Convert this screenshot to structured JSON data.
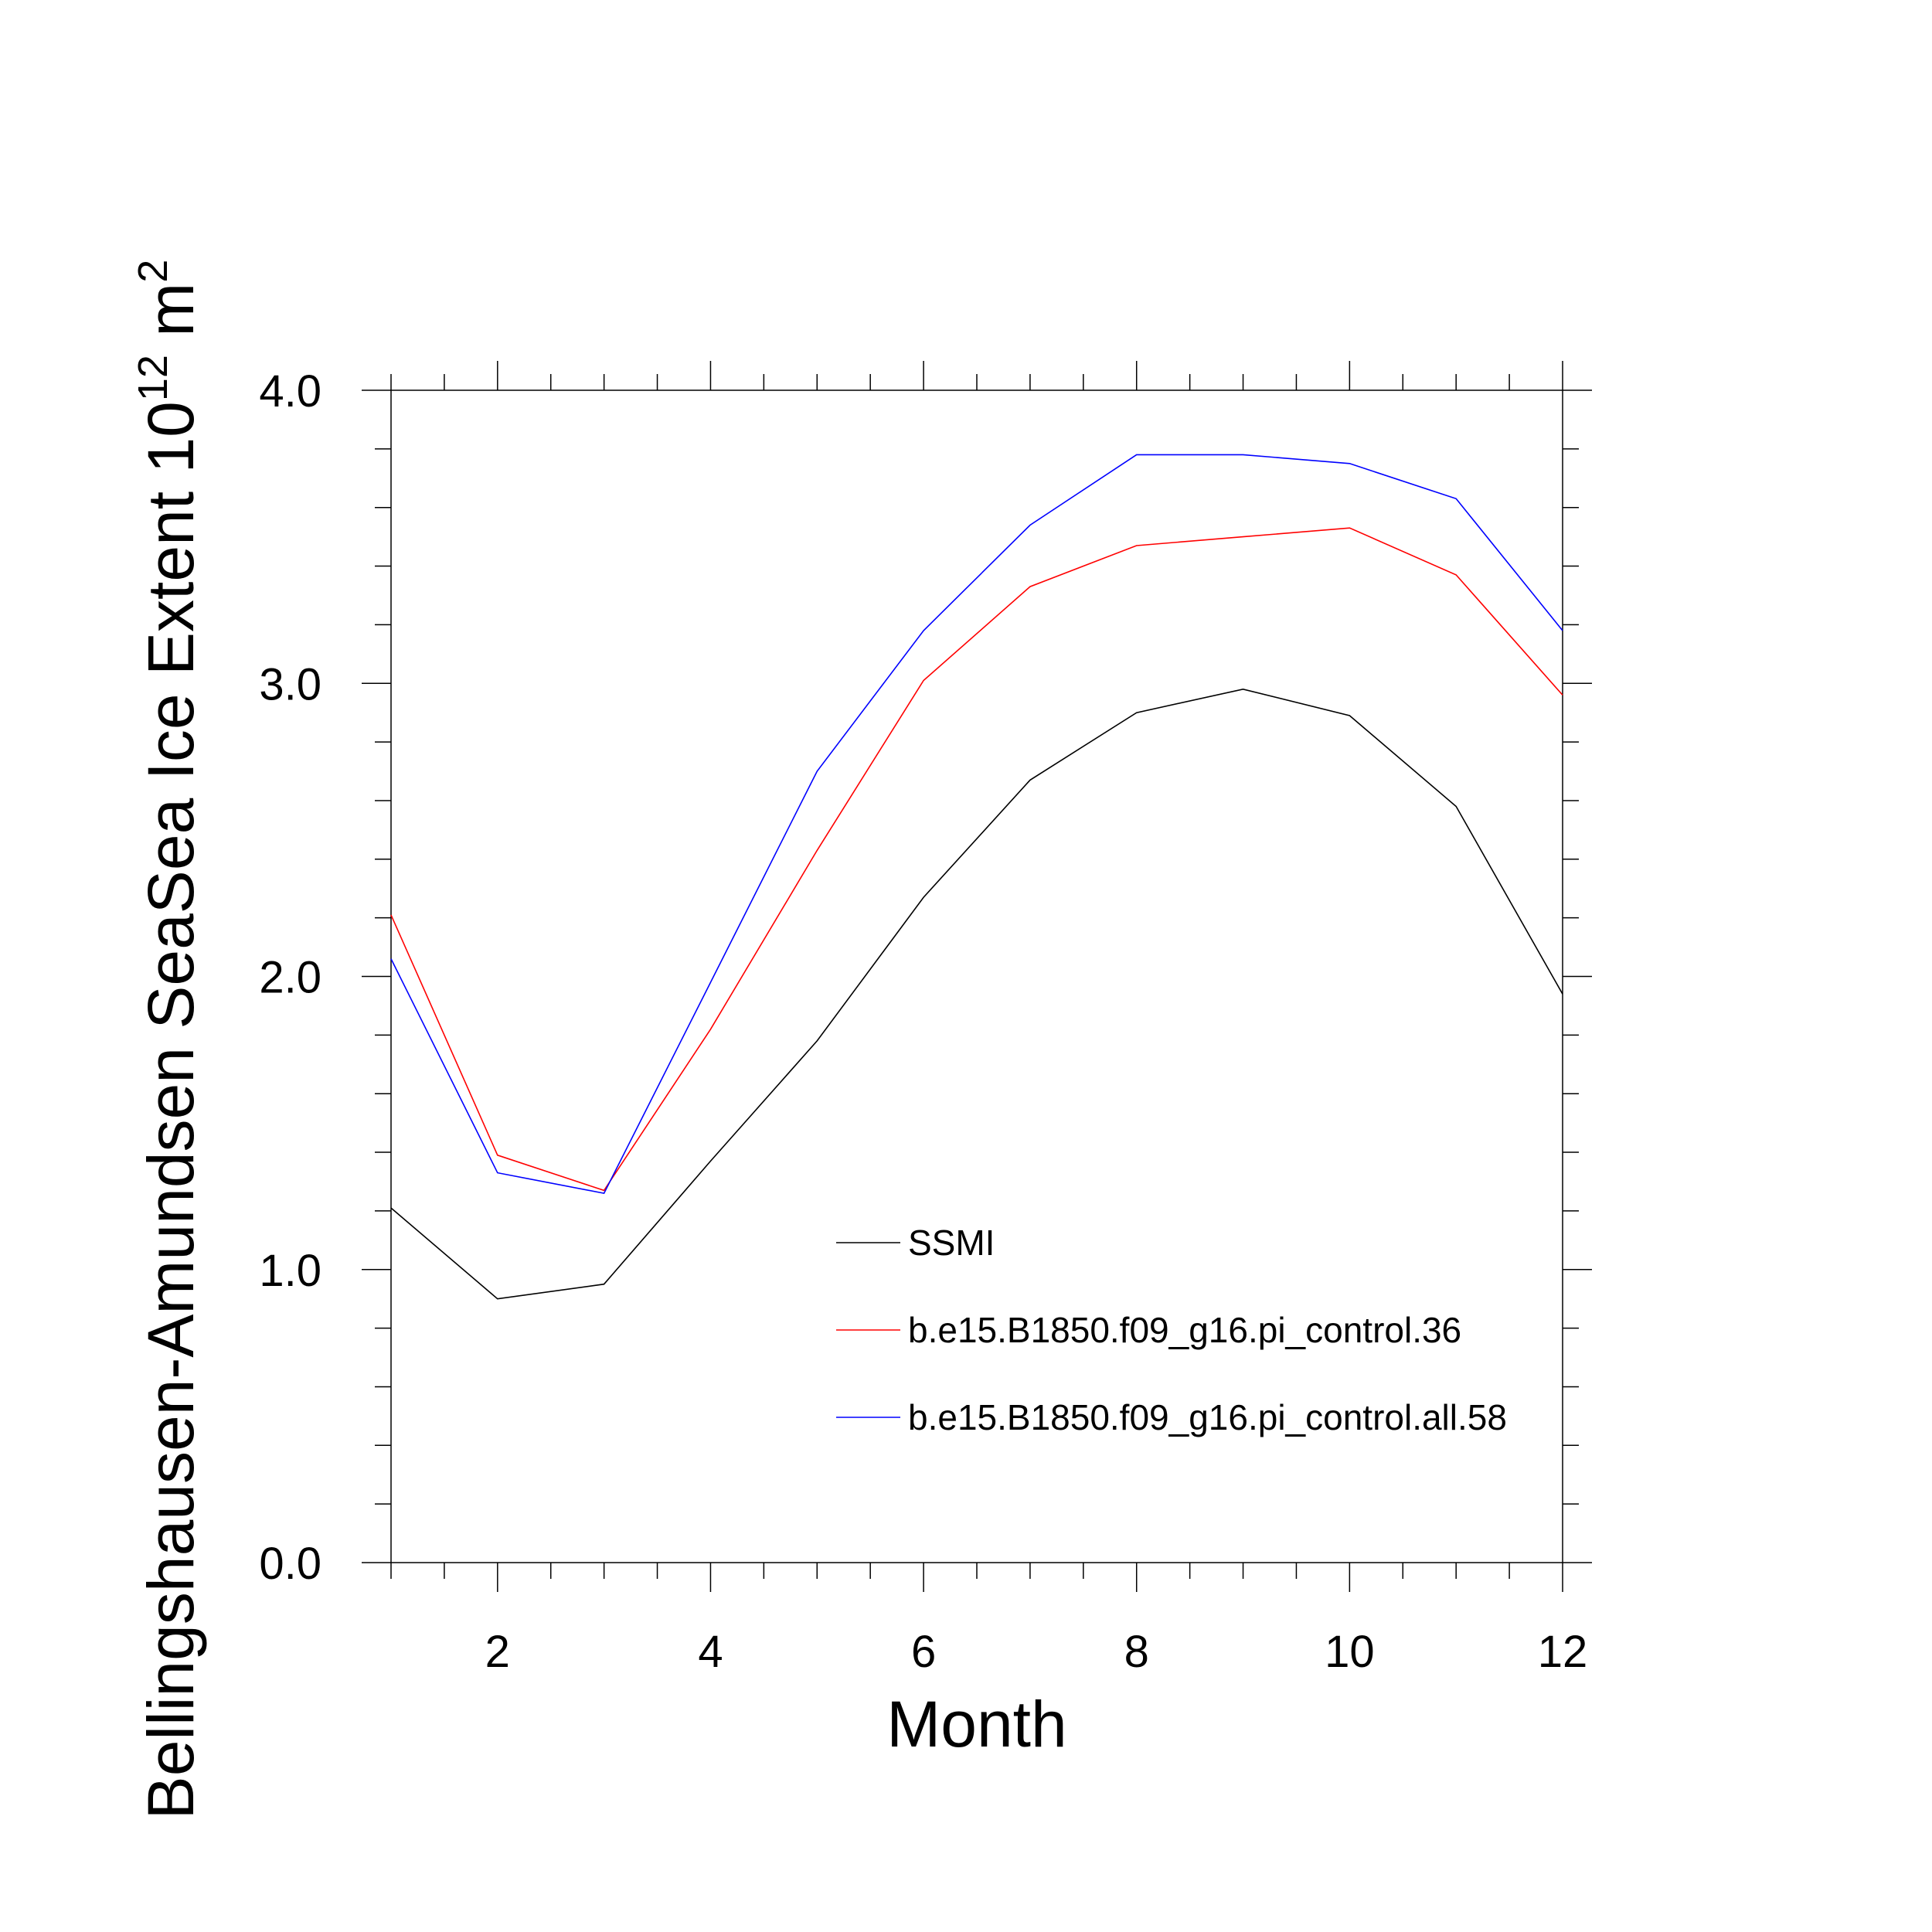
{
  "chart_data": {
    "type": "line",
    "xlabel": "Month",
    "ylabel_main": "Bellingshausen-Amundsen SeaSea Ice Extent 10",
    "ylabel_superscript_exp": "12",
    "ylabel_unit": " m",
    "ylabel_superscript_unit": "2",
    "xlim": [
      1,
      12
    ],
    "ylim": [
      0.0,
      4.0
    ],
    "x_ticks": [
      2,
      4,
      6,
      8,
      10,
      12
    ],
    "x_tick_labels": [
      "2",
      "4",
      "6",
      "8",
      "10",
      "12"
    ],
    "y_ticks": [
      0.0,
      1.0,
      2.0,
      3.0,
      4.0
    ],
    "y_tick_labels": [
      "0.0",
      "1.0",
      "2.0",
      "3.0",
      "4.0"
    ],
    "grid": false,
    "legend_position": "lower-right inside plot",
    "x": [
      1,
      2,
      3,
      4,
      5,
      6,
      7,
      8,
      9,
      10,
      11,
      12
    ],
    "series": [
      {
        "name": "SSMI",
        "color": "#000000",
        "values": [
          1.21,
          0.9,
          0.95,
          1.37,
          1.78,
          2.27,
          2.67,
          2.9,
          2.98,
          2.89,
          2.58,
          1.94
        ]
      },
      {
        "name": "b.e15.B1850.f09_g16.pi_control.36",
        "color": "#ff0000",
        "values": [
          2.21,
          1.39,
          1.27,
          1.82,
          2.43,
          3.01,
          3.33,
          3.47,
          3.5,
          3.53,
          3.37,
          2.96
        ]
      },
      {
        "name": "b.e15.B1850.f09_g16.pi_control.all.58",
        "color": "#0000ff",
        "values": [
          2.06,
          1.33,
          1.26,
          1.98,
          2.7,
          3.18,
          3.54,
          3.78,
          3.78,
          3.75,
          3.63,
          3.18
        ]
      }
    ]
  }
}
